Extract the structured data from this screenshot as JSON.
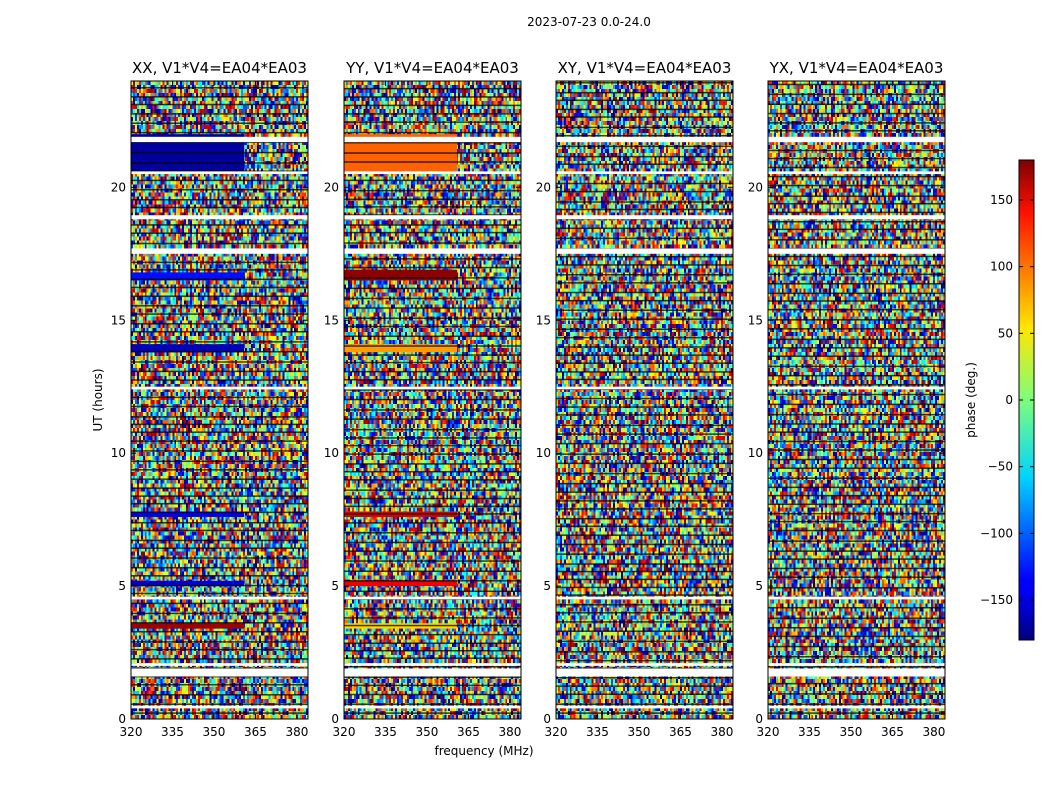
{
  "chart_data": {
    "type": "heatmap",
    "suptitle": "2023-07-23 0.0-24.0",
    "xlabel": "frequency (MHz)",
    "ylabel": "UT (hours)",
    "xlim": [
      320,
      384
    ],
    "ylim": [
      0,
      24
    ],
    "xticks": [
      "320",
      "335",
      "350",
      "365",
      "380"
    ],
    "yticks": [
      "0",
      "5",
      "10",
      "15",
      "20"
    ],
    "colormap": "jet",
    "colorbar": {
      "label": "phase (deg.)",
      "range": [
        -180,
        180
      ],
      "ticks": [
        "150",
        "100",
        "50",
        "0",
        "−50",
        "−100",
        "−150"
      ],
      "tick_values": [
        150,
        100,
        50,
        0,
        -50,
        -100,
        -150
      ]
    },
    "panels": [
      {
        "title": "XX, V1*V4=EA04*EA03",
        "flag_bands_ut": [
          [
            0.4,
            0.5
          ],
          [
            1.6,
            1.9
          ],
          [
            2.0,
            2.1
          ],
          [
            4.5,
            4.6
          ],
          [
            12.4,
            12.5
          ],
          [
            17.5,
            17.7
          ],
          [
            18.8,
            18.95
          ],
          [
            20.5,
            20.6
          ],
          [
            21.7,
            21.9
          ]
        ],
        "coherent_bands": [
          {
            "ut": [
              20.6,
              22.0
            ],
            "phase": -170
          },
          {
            "ut": [
              16.5,
              16.8
            ],
            "phase": -130
          },
          {
            "ut": [
              13.8,
              14.1
            ],
            "phase": -160
          },
          {
            "ut": [
              7.6,
              7.8
            ],
            "phase": -140
          },
          {
            "ut": [
              5.0,
              5.2
            ],
            "phase": -150
          },
          {
            "ut": [
              3.4,
              3.6
            ],
            "phase": 170
          }
        ]
      },
      {
        "title": "YY, V1*V4=EA04*EA03",
        "flag_bands_ut": [
          [
            0.4,
            0.5
          ],
          [
            1.6,
            1.9
          ],
          [
            2.0,
            2.1
          ],
          [
            4.5,
            4.6
          ],
          [
            12.4,
            12.5
          ],
          [
            17.5,
            17.7
          ],
          [
            18.8,
            18.95
          ],
          [
            20.5,
            20.6
          ],
          [
            21.7,
            21.9
          ]
        ],
        "coherent_bands": [
          {
            "ut": [
              20.6,
              22.0
            ],
            "phase": 100
          },
          {
            "ut": [
              16.5,
              16.9
            ],
            "phase": 175
          },
          {
            "ut": [
              13.8,
              14.1
            ],
            "phase": 80
          },
          {
            "ut": [
              7.6,
              7.8
            ],
            "phase": 150
          },
          {
            "ut": [
              5.0,
              5.2
            ],
            "phase": 140
          },
          {
            "ut": [
              3.4,
              3.6
            ],
            "phase": 60
          }
        ]
      },
      {
        "title": "XY, V1*V4=EA04*EA03",
        "flag_bands_ut": [
          [
            0.4,
            0.5
          ],
          [
            1.6,
            1.9
          ],
          [
            2.0,
            2.1
          ],
          [
            4.5,
            4.6
          ],
          [
            12.4,
            12.5
          ],
          [
            17.5,
            17.7
          ],
          [
            18.8,
            18.95
          ],
          [
            20.5,
            20.6
          ],
          [
            21.7,
            21.9
          ]
        ],
        "coherent_bands": []
      },
      {
        "title": "YX, V1*V4=EA04*EA03",
        "flag_bands_ut": [
          [
            0.4,
            0.5
          ],
          [
            1.6,
            1.9
          ],
          [
            2.0,
            2.1
          ],
          [
            4.5,
            4.6
          ],
          [
            12.4,
            12.5
          ],
          [
            17.5,
            17.7
          ],
          [
            18.8,
            18.95
          ],
          [
            20.5,
            20.6
          ],
          [
            21.7,
            21.9
          ]
        ],
        "coherent_bands": []
      }
    ]
  }
}
